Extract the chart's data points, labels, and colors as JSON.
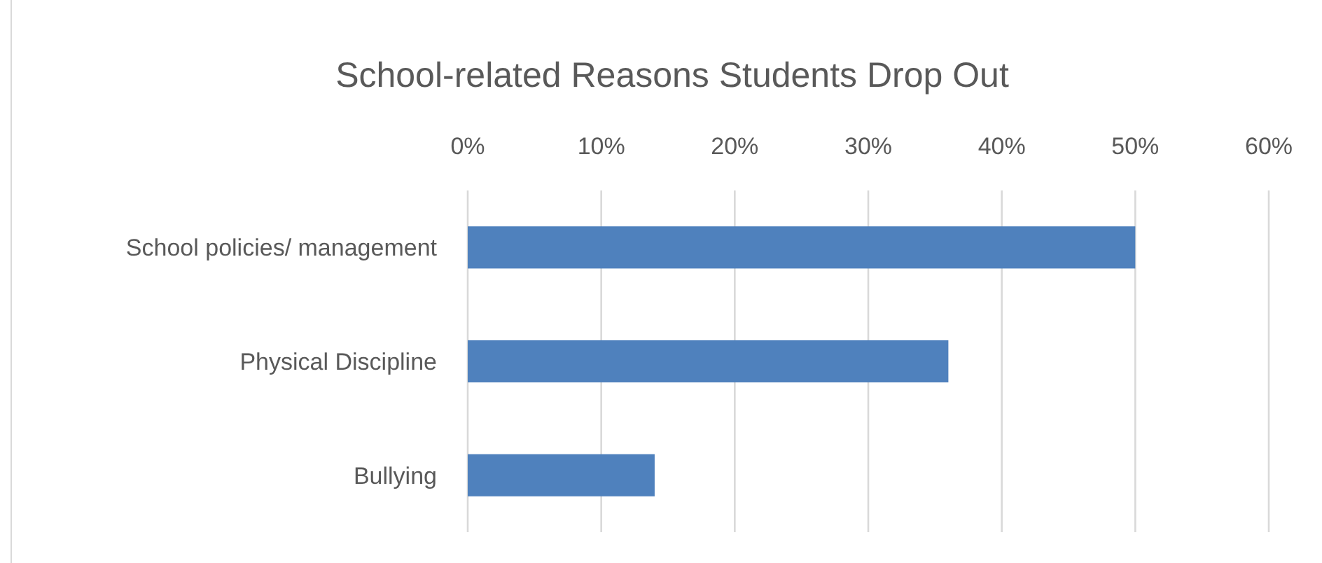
{
  "chart_data": {
    "type": "bar",
    "orientation": "horizontal",
    "title": "School-related Reasons Students Drop Out",
    "categories": [
      "School policies/ management",
      "Physical Discipline",
      "Bullying"
    ],
    "values": [
      0.5,
      0.36,
      0.14
    ],
    "color": "#4f81bd",
    "xlim": [
      0,
      0.6
    ],
    "xticks": [
      {
        "value": 0,
        "label": "0%"
      },
      {
        "value": 0.1,
        "label": "10%"
      },
      {
        "value": 0.2,
        "label": "20%"
      },
      {
        "value": 0.3,
        "label": "30%"
      },
      {
        "value": 0.4,
        "label": "40%"
      },
      {
        "value": 0.5,
        "label": "50%"
      },
      {
        "value": 0.6,
        "label": "60%"
      }
    ],
    "grid": "x"
  }
}
